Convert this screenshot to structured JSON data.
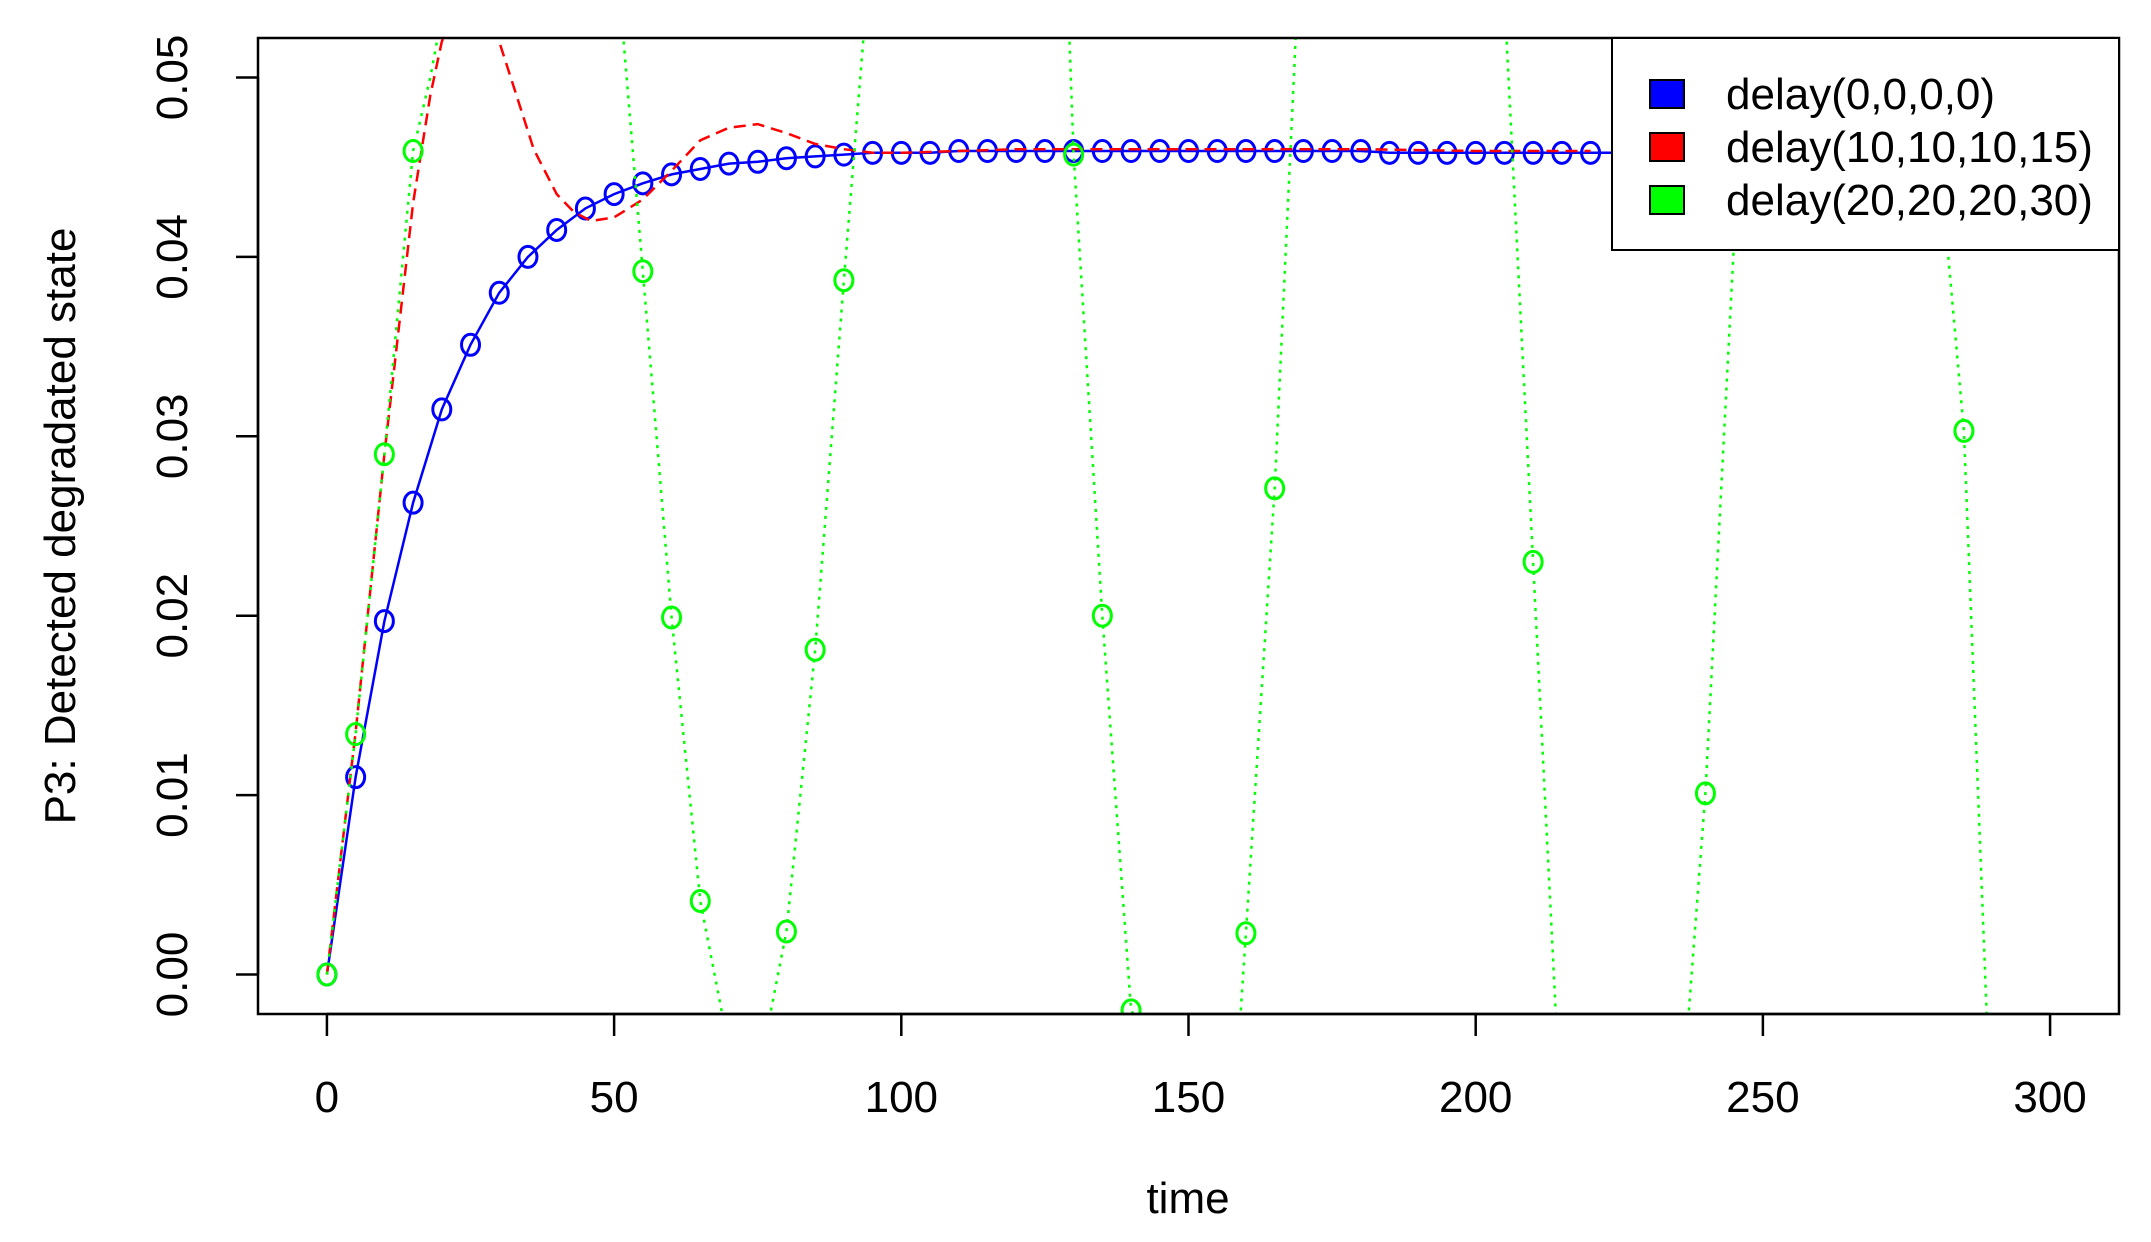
{
  "chart_data": {
    "type": "line",
    "title": "",
    "xlabel": "time",
    "ylabel": "P3: Detected degradated state",
    "xlim": [
      -12,
      312
    ],
    "ylim": [
      -0.0022,
      0.0522
    ],
    "x_ticks": [
      0,
      50,
      100,
      150,
      200,
      250,
      300
    ],
    "x_tick_labels": [
      "0",
      "50",
      "100",
      "150",
      "200",
      "250",
      "300"
    ],
    "y_ticks": [
      0.0,
      0.01,
      0.02,
      0.03,
      0.04,
      0.05
    ],
    "y_tick_labels": [
      "0.00",
      "0.01",
      "0.02",
      "0.03",
      "0.04",
      "0.05"
    ],
    "grid": false,
    "legend_position": "top-right",
    "series": [
      {
        "name": "delay(0,0,0,0)",
        "color": "#0000FF",
        "line_style": "solid",
        "marker": "circle",
        "marker_x": [
          0,
          5,
          10,
          15,
          20,
          25,
          30,
          35,
          40,
          45,
          50,
          55,
          60,
          65,
          70,
          75,
          80,
          85,
          90,
          95,
          100,
          105,
          110,
          115,
          120,
          125,
          130,
          135,
          140,
          145,
          150,
          155,
          160,
          165,
          170,
          175,
          180,
          185,
          190,
          195,
          200,
          205,
          210,
          215,
          220
        ],
        "marker_y": [
          0.0,
          0.011,
          0.0197,
          0.0263,
          0.0315,
          0.0351,
          0.038,
          0.04,
          0.0415,
          0.0427,
          0.0435,
          0.0441,
          0.0446,
          0.0449,
          0.0452,
          0.0453,
          0.0455,
          0.0456,
          0.0457,
          0.0458,
          0.0458,
          0.0458,
          0.0459,
          0.0459,
          0.0459,
          0.0459,
          0.0459,
          0.0459,
          0.0459,
          0.0459,
          0.0459,
          0.0459,
          0.0459,
          0.0459,
          0.0459,
          0.0459,
          0.0459,
          0.0458,
          0.0458,
          0.0458,
          0.0458,
          0.0458,
          0.0458,
          0.0458,
          0.0458
        ],
        "line_x": [
          0,
          5,
          10,
          15,
          20,
          25,
          30,
          35,
          40,
          45,
          50,
          55,
          60,
          65,
          70,
          75,
          80,
          85,
          90,
          95,
          100,
          105,
          110,
          115,
          120,
          125,
          130,
          135,
          140,
          145,
          150,
          155,
          160,
          165,
          170,
          175,
          180,
          185,
          190,
          195,
          200,
          205,
          210,
          215,
          220,
          240,
          260,
          280,
          300
        ],
        "line_y": [
          0.0,
          0.011,
          0.0197,
          0.0263,
          0.0315,
          0.0351,
          0.038,
          0.04,
          0.0415,
          0.0427,
          0.0435,
          0.0441,
          0.0446,
          0.0449,
          0.0452,
          0.0453,
          0.0455,
          0.0456,
          0.0457,
          0.0458,
          0.0458,
          0.0458,
          0.0459,
          0.0459,
          0.0459,
          0.0459,
          0.0459,
          0.0459,
          0.0459,
          0.0459,
          0.0459,
          0.0459,
          0.0459,
          0.0459,
          0.0459,
          0.0459,
          0.0459,
          0.0458,
          0.0458,
          0.0458,
          0.0458,
          0.0458,
          0.0458,
          0.0458,
          0.0458,
          0.0458,
          0.0458,
          0.0458,
          0.0458
        ]
      },
      {
        "name": "delay(10,10,10,15)",
        "color": "#FF0000",
        "line_style": "dashed",
        "marker": "none",
        "x": [
          0,
          5,
          10,
          15,
          18,
          20,
          22,
          25,
          28,
          30,
          33,
          36,
          40,
          43,
          46,
          50,
          55,
          60,
          65,
          70,
          75,
          80,
          85,
          90,
          95,
          100,
          110,
          120,
          140,
          160,
          180,
          200,
          220
        ],
        "y": [
          0.0,
          0.0135,
          0.029,
          0.043,
          0.049,
          0.052,
          0.0535,
          0.0542,
          0.0535,
          0.052,
          0.049,
          0.046,
          0.0435,
          0.0425,
          0.042,
          0.0422,
          0.0432,
          0.0448,
          0.0465,
          0.0472,
          0.0474,
          0.0469,
          0.0463,
          0.046,
          0.0458,
          0.0458,
          0.0459,
          0.046,
          0.046,
          0.046,
          0.046,
          0.0459,
          0.0459
        ]
      },
      {
        "name": "delay(20,20,20,30)",
        "color": "#00FF00",
        "line_style": "dotted",
        "marker": "circle",
        "marker_x": [
          0,
          5,
          10,
          15,
          55,
          60,
          65,
          80,
          85,
          90,
          130,
          135,
          140,
          160,
          165,
          210,
          240,
          285
        ],
        "marker_y": [
          0.0,
          0.0134,
          0.029,
          0.0459,
          0.0392,
          0.0199,
          0.0041,
          0.0024,
          0.0181,
          0.0387,
          0.0457,
          0.02,
          -0.002,
          0.0023,
          0.0271,
          0.023,
          0.0101,
          0.0303
        ],
        "segments": [
          {
            "x": [
              0,
              5,
              10,
              15,
              18,
              20,
              23
            ],
            "y": [
              0.0,
              0.0134,
              0.029,
              0.0459,
              0.05,
              0.0535,
              0.058
            ]
          },
          {
            "x": [
              51,
              55,
              60,
              65,
              69
            ],
            "y": [
              0.0545,
              0.0392,
              0.0199,
              0.0041,
              -0.0025
            ]
          },
          {
            "x": [
              77,
              80,
              85,
              90,
              94
            ],
            "y": [
              -0.0025,
              0.0024,
              0.0181,
              0.0387,
              0.0545
            ]
          },
          {
            "x": [
              129,
              130,
              135,
              140,
              141
            ],
            "y": [
              0.0545,
              0.0457,
              0.02,
              -0.002,
              -0.0025
            ]
          },
          {
            "x": [
              159,
              160,
              165,
              169
            ],
            "y": [
              -0.0025,
              0.0023,
              0.0271,
              0.0545
            ]
          },
          {
            "x": [
              205,
              210,
              214
            ],
            "y": [
              0.0545,
              0.023,
              -0.0025
            ]
          },
          {
            "x": [
              237,
              240,
              245
            ],
            "y": [
              -0.0025,
              0.0101,
              0.041
            ]
          },
          {
            "x": [
              282,
              285,
              289
            ],
            "y": [
              0.041,
              0.0303,
              -0.0025
            ]
          }
        ]
      }
    ]
  }
}
